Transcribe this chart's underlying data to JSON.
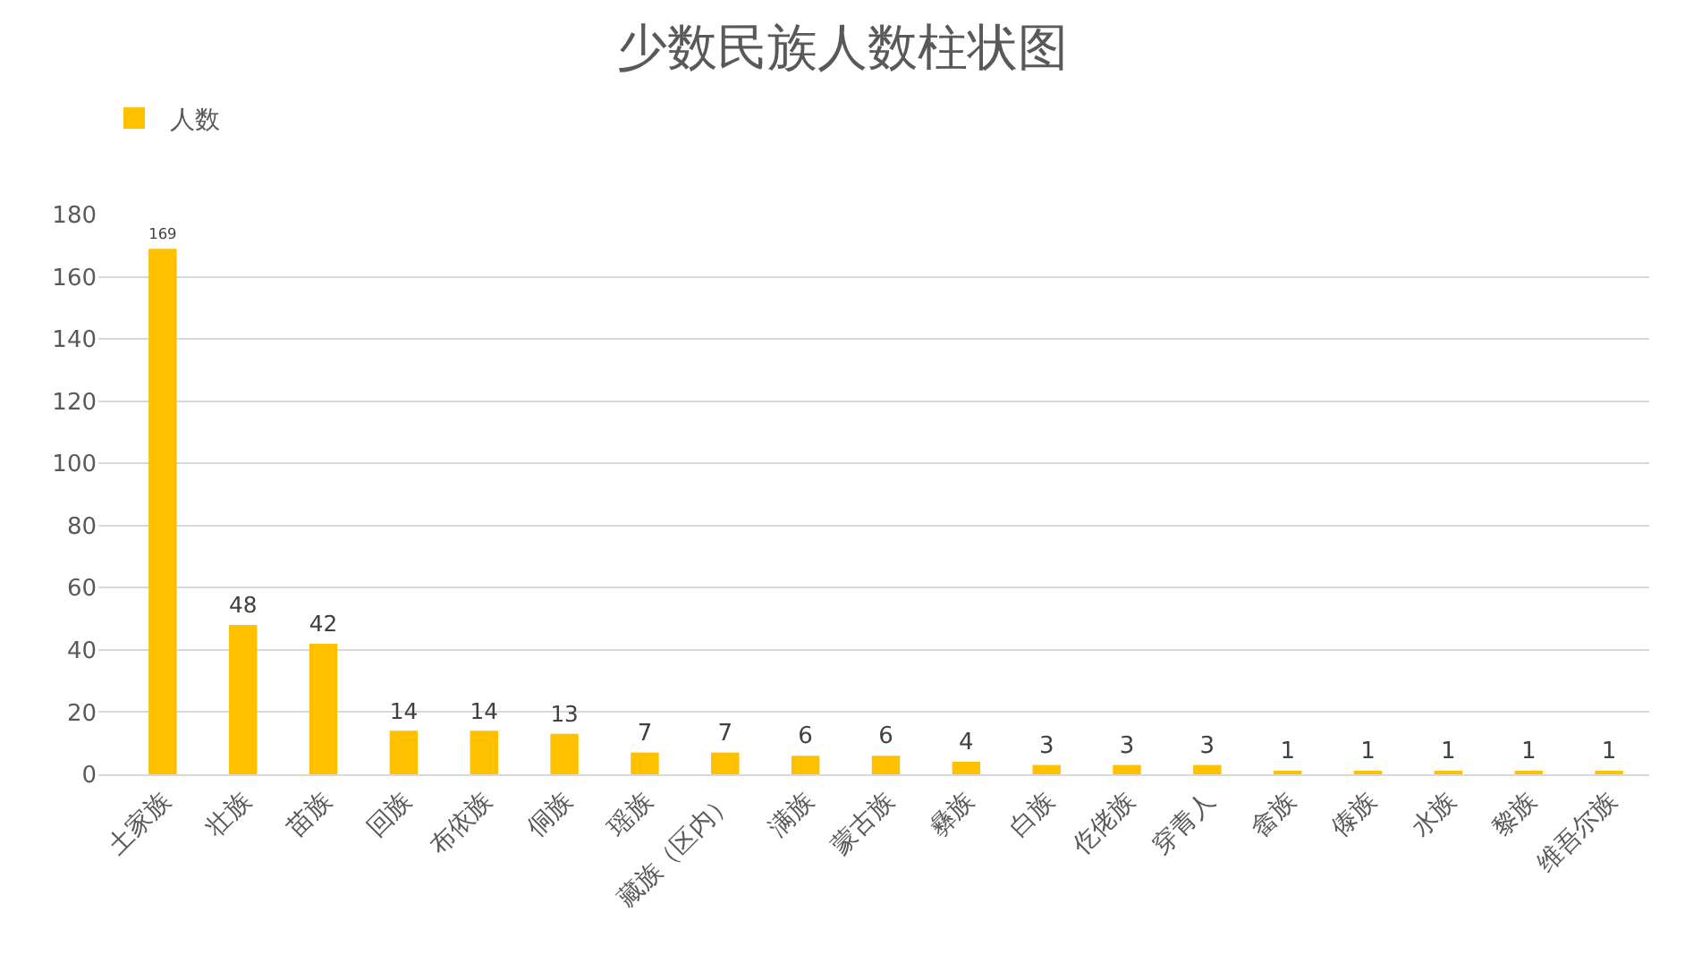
{
  "chart_data": {
    "type": "bar",
    "title": "少数民族人数柱状图",
    "categories": [
      "土家族",
      "壮族",
      "苗族",
      "回族",
      "布依族",
      "侗族",
      "瑶族",
      "藏族（区内）",
      "满族",
      "蒙古族",
      "彝族",
      "白族",
      "仡佬族",
      "穿青人",
      "畲族",
      "傣族",
      "水族",
      "黎族",
      "维吾尔族"
    ],
    "series": [
      {
        "name": "人数",
        "color": "#ffc000",
        "values": [
          169,
          48,
          42,
          14,
          14,
          13,
          7,
          7,
          6,
          6,
          4,
          3,
          3,
          3,
          1,
          1,
          1,
          1,
          1
        ]
      }
    ],
    "ylim": [
      0,
      180
    ],
    "yticks": [
      0,
      20,
      40,
      60,
      80,
      100,
      120,
      140,
      160,
      180
    ],
    "grid": "y",
    "legend": "top left",
    "data_labels": true
  }
}
